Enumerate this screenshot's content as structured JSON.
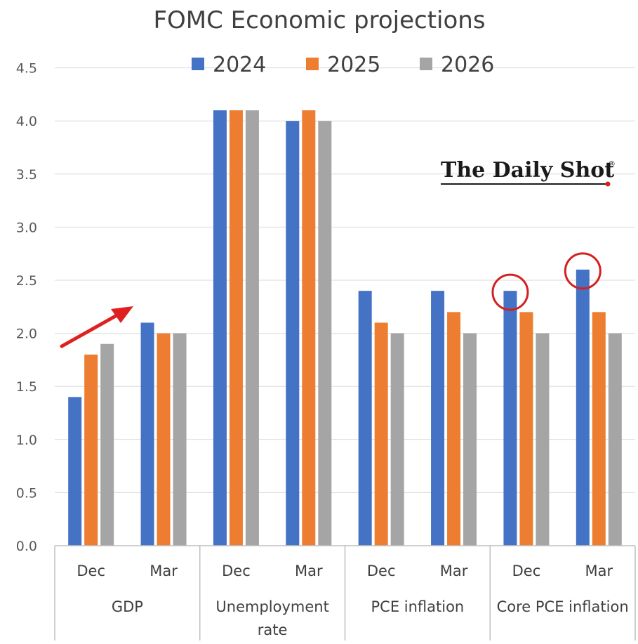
{
  "chart_data": {
    "type": "bar",
    "title": "FOMC Economic projections",
    "ylim": [
      0,
      4.5
    ],
    "yticks": [
      "0.0",
      "0.5",
      "1.0",
      "1.5",
      "2.0",
      "2.5",
      "3.0",
      "3.5",
      "4.0",
      "4.5"
    ],
    "grid": true,
    "legend_position": "top",
    "groups": [
      {
        "name": "GDP",
        "subcategories": [
          "Dec",
          "Mar"
        ]
      },
      {
        "name": "Unemployment rate",
        "name_lines": [
          "Unemployment",
          "rate"
        ],
        "subcategories": [
          "Dec",
          "Mar"
        ]
      },
      {
        "name": "PCE inflation",
        "subcategories": [
          "Dec",
          "Mar"
        ]
      },
      {
        "name": "Core PCE inflation",
        "subcategories": [
          "Dec",
          "Mar"
        ]
      }
    ],
    "categories": [
      "GDP Dec",
      "GDP Mar",
      "Unemployment rate Dec",
      "Unemployment rate Mar",
      "PCE inflation Dec",
      "PCE inflation Mar",
      "Core PCE inflation Dec",
      "Core PCE inflation Mar"
    ],
    "series": [
      {
        "name": "2024",
        "color": "#4472c4",
        "values": [
          1.4,
          2.1,
          4.1,
          4.0,
          2.4,
          2.4,
          2.4,
          2.6
        ]
      },
      {
        "name": "2025",
        "color": "#ed7d31",
        "values": [
          1.8,
          2.0,
          4.1,
          4.1,
          2.1,
          2.2,
          2.2,
          2.2
        ]
      },
      {
        "name": "2026",
        "color": "#a5a5a5",
        "values": [
          1.9,
          2.0,
          4.1,
          4.0,
          2.0,
          2.0,
          2.0,
          2.0
        ]
      }
    ],
    "annotations": {
      "arrow": {
        "color": "#e02020",
        "description_group": "GDP"
      },
      "circles": [
        {
          "category_index": 6,
          "series_index": 0,
          "color": "#d42020"
        },
        {
          "category_index": 7,
          "series_index": 0,
          "color": "#d42020"
        }
      ]
    }
  },
  "branding": {
    "text": "The Daily Shot",
    "mark": "®",
    "accent_color": "#d42020"
  }
}
